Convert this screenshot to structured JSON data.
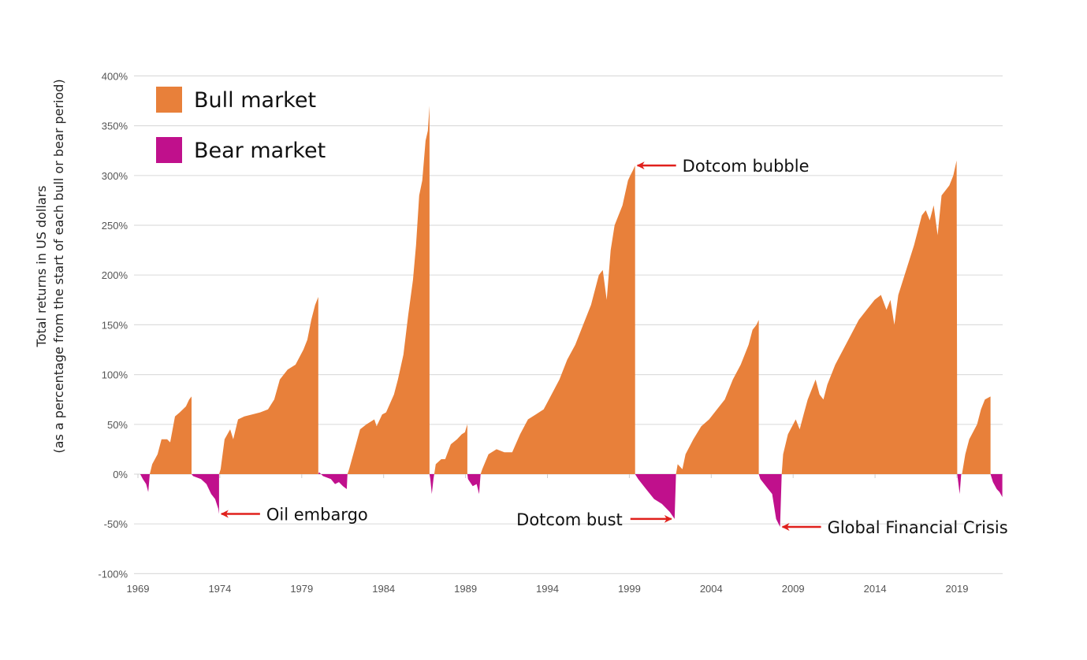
{
  "chart_data": {
    "type": "area",
    "title": "",
    "ylabel_line1": "Total returns in US dollars",
    "ylabel_line2": "(as a percentage from the start of each bull or bear period)",
    "xlabel": "",
    "ylim": [
      -100,
      400
    ],
    "xlim": [
      1969,
      2022.8
    ],
    "yticks": [
      -100,
      -50,
      0,
      50,
      100,
      150,
      200,
      250,
      300,
      350,
      400
    ],
    "ytick_labels": [
      "-100%",
      "-50%",
      "0%",
      "50%",
      "100%",
      "150%",
      "200%",
      "250%",
      "300%",
      "350%",
      "400%"
    ],
    "xticks": [
      1969,
      1974,
      1979,
      1984,
      1989,
      1994,
      1999,
      2004,
      2009,
      2014,
      2019
    ],
    "xtick_labels": [
      "1969",
      "1974",
      "1979",
      "1984",
      "1989",
      "1994",
      "1999",
      "2004",
      "2009",
      "2014",
      "2019"
    ],
    "grid": true,
    "legend_position": "top-left",
    "colors": {
      "bull": "#E8803A",
      "bear": "#C0108C",
      "grid": "#dddddd",
      "annotation_arrow": "#E0201C"
    },
    "legend": [
      {
        "key": "bull",
        "label": "Bull market"
      },
      {
        "key": "bear",
        "label": "Bear market"
      }
    ],
    "segments": [
      {
        "kind": "bear",
        "points": [
          [
            1969.14,
            0
          ],
          [
            1969.3,
            -5
          ],
          [
            1969.5,
            -10
          ],
          [
            1969.63,
            -18
          ],
          [
            1969.72,
            0
          ]
        ]
      },
      {
        "kind": "bull",
        "points": [
          [
            1969.72,
            0
          ],
          [
            1969.87,
            10
          ],
          [
            1970.2,
            20
          ],
          [
            1970.44,
            35
          ],
          [
            1970.78,
            35
          ],
          [
            1970.97,
            32
          ],
          [
            1971.26,
            58
          ],
          [
            1971.55,
            62
          ],
          [
            1971.93,
            68
          ],
          [
            1972.13,
            75
          ],
          [
            1972.27,
            78
          ]
        ]
      },
      {
        "kind": "bear",
        "points": [
          [
            1972.27,
            0
          ],
          [
            1972.37,
            -2
          ],
          [
            1972.85,
            -5
          ],
          [
            1973.18,
            -10
          ],
          [
            1973.47,
            -20
          ],
          [
            1973.71,
            -25
          ],
          [
            1973.91,
            -35
          ],
          [
            1973.95,
            -40
          ]
        ]
      },
      {
        "kind": "bull",
        "points": [
          [
            1973.95,
            0
          ],
          [
            1974.05,
            5
          ],
          [
            1974.29,
            35
          ],
          [
            1974.63,
            45
          ],
          [
            1974.82,
            35
          ],
          [
            1975.11,
            55
          ],
          [
            1975.49,
            58
          ],
          [
            1975.97,
            60
          ],
          [
            1976.46,
            62
          ],
          [
            1976.94,
            65
          ],
          [
            1977.32,
            75
          ],
          [
            1977.66,
            95
          ],
          [
            1977.9,
            100
          ],
          [
            1978.14,
            105
          ],
          [
            1978.62,
            110
          ],
          [
            1979.1,
            125
          ],
          [
            1979.34,
            135
          ],
          [
            1979.58,
            155
          ],
          [
            1979.82,
            170
          ],
          [
            1980.01,
            178
          ]
        ]
      },
      {
        "kind": "bear",
        "points": [
          [
            1980.01,
            0
          ],
          [
            1980.06,
            2
          ],
          [
            1980.3,
            -2
          ],
          [
            1980.78,
            -5
          ],
          [
            1981.03,
            -10
          ],
          [
            1981.27,
            -8
          ],
          [
            1981.51,
            -12
          ],
          [
            1981.75,
            -15
          ],
          [
            1981.79,
            0
          ]
        ]
      },
      {
        "kind": "bull",
        "points": [
          [
            1981.79,
            0
          ],
          [
            1981.89,
            5
          ],
          [
            1982.23,
            25
          ],
          [
            1982.56,
            45
          ],
          [
            1982.95,
            50
          ],
          [
            1983.43,
            55
          ],
          [
            1983.57,
            48
          ],
          [
            1983.91,
            60
          ],
          [
            1984.15,
            62
          ],
          [
            1984.63,
            80
          ],
          [
            1984.87,
            95
          ],
          [
            1985.21,
            120
          ],
          [
            1985.5,
            160
          ],
          [
            1985.79,
            195
          ],
          [
            1985.98,
            230
          ],
          [
            1986.17,
            280
          ],
          [
            1986.36,
            295
          ],
          [
            1986.56,
            335
          ],
          [
            1986.7,
            345
          ],
          [
            1986.8,
            370
          ]
        ]
      },
      {
        "kind": "bear",
        "points": [
          [
            1986.8,
            0
          ],
          [
            1986.85,
            -5
          ],
          [
            1986.94,
            -20
          ],
          [
            1987.04,
            -5
          ],
          [
            1987.09,
            0
          ]
        ]
      },
      {
        "kind": "bull",
        "points": [
          [
            1987.09,
            0
          ],
          [
            1987.18,
            10
          ],
          [
            1987.52,
            15
          ],
          [
            1987.76,
            15
          ],
          [
            1988.1,
            30
          ],
          [
            1988.48,
            35
          ],
          [
            1988.77,
            40
          ],
          [
            1988.96,
            42
          ],
          [
            1989.11,
            50
          ]
        ]
      },
      {
        "kind": "bear",
        "points": [
          [
            1989.11,
            0
          ],
          [
            1989.15,
            -5
          ],
          [
            1989.44,
            -12
          ],
          [
            1989.68,
            -10
          ],
          [
            1989.83,
            -20
          ],
          [
            1989.92,
            0
          ]
        ]
      },
      {
        "kind": "bull",
        "points": [
          [
            1989.92,
            0
          ],
          [
            1990.02,
            5
          ],
          [
            1990.4,
            20
          ],
          [
            1990.89,
            25
          ],
          [
            1991.37,
            22
          ],
          [
            1991.85,
            22
          ],
          [
            1992.33,
            40
          ],
          [
            1992.81,
            55
          ],
          [
            1993.29,
            60
          ],
          [
            1993.77,
            65
          ],
          [
            1994.25,
            80
          ],
          [
            1994.73,
            95
          ],
          [
            1995.21,
            115
          ],
          [
            1995.7,
            130
          ],
          [
            1996.18,
            150
          ],
          [
            1996.66,
            170
          ],
          [
            1997.14,
            200
          ],
          [
            1997.38,
            205
          ],
          [
            1997.62,
            175
          ],
          [
            1997.86,
            225
          ],
          [
            1998.1,
            250
          ],
          [
            1998.58,
            270
          ],
          [
            1998.92,
            295
          ],
          [
            1999.06,
            300
          ],
          [
            1999.21,
            305
          ],
          [
            1999.35,
            310
          ]
        ]
      },
      {
        "kind": "bear",
        "points": [
          [
            1999.35,
            0
          ],
          [
            1999.54,
            -5
          ],
          [
            2000.02,
            -15
          ],
          [
            2000.51,
            -25
          ],
          [
            2000.99,
            -30
          ],
          [
            2001.47,
            -38
          ],
          [
            2001.76,
            -45
          ],
          [
            2001.85,
            0
          ]
        ]
      },
      {
        "kind": "bull",
        "points": [
          [
            2001.85,
            0
          ],
          [
            2001.95,
            10
          ],
          [
            2002.24,
            5
          ],
          [
            2002.43,
            20
          ],
          [
            2002.91,
            35
          ],
          [
            2003.39,
            48
          ],
          [
            2003.87,
            55
          ],
          [
            2004.35,
            65
          ],
          [
            2004.83,
            75
          ],
          [
            2005.32,
            95
          ],
          [
            2005.8,
            110
          ],
          [
            2006.28,
            130
          ],
          [
            2006.52,
            145
          ],
          [
            2006.76,
            150
          ],
          [
            2006.9,
            155
          ]
        ]
      },
      {
        "kind": "bear",
        "points": [
          [
            2006.9,
            0
          ],
          [
            2007.0,
            -5
          ],
          [
            2007.24,
            -10
          ],
          [
            2007.48,
            -15
          ],
          [
            2007.72,
            -20
          ],
          [
            2007.96,
            -45
          ],
          [
            2008.2,
            -53
          ],
          [
            2008.3,
            0
          ]
        ]
      },
      {
        "kind": "bull",
        "points": [
          [
            2008.3,
            0
          ],
          [
            2008.39,
            20
          ],
          [
            2008.68,
            40
          ],
          [
            2009.16,
            55
          ],
          [
            2009.4,
            45
          ],
          [
            2009.64,
            60
          ],
          [
            2009.89,
            75
          ],
          [
            2010.37,
            95
          ],
          [
            2010.61,
            80
          ],
          [
            2010.85,
            75
          ],
          [
            2011.09,
            90
          ],
          [
            2011.57,
            110
          ],
          [
            2012.05,
            125
          ],
          [
            2012.53,
            140
          ],
          [
            2013.01,
            155
          ],
          [
            2013.49,
            165
          ],
          [
            2013.97,
            175
          ],
          [
            2014.36,
            180
          ],
          [
            2014.7,
            165
          ],
          [
            2014.94,
            175
          ],
          [
            2015.18,
            150
          ],
          [
            2015.42,
            180
          ],
          [
            2015.9,
            205
          ],
          [
            2016.38,
            230
          ],
          [
            2016.86,
            260
          ],
          [
            2017.1,
            265
          ],
          [
            2017.34,
            255
          ],
          [
            2017.58,
            270
          ],
          [
            2017.82,
            240
          ],
          [
            2018.06,
            280
          ],
          [
            2018.3,
            285
          ],
          [
            2018.54,
            290
          ],
          [
            2018.78,
            300
          ],
          [
            2018.98,
            315
          ],
          [
            2019.02,
            0
          ]
        ]
      },
      {
        "kind": "bear",
        "points": [
          [
            2019.02,
            0
          ],
          [
            2019.17,
            -20
          ],
          [
            2019.26,
            0
          ]
        ]
      },
      {
        "kind": "bull",
        "points": [
          [
            2019.31,
            0
          ],
          [
            2019.51,
            20
          ],
          [
            2019.75,
            35
          ],
          [
            2020.23,
            50
          ],
          [
            2020.47,
            65
          ],
          [
            2020.71,
            75
          ],
          [
            2021.05,
            78
          ]
        ]
      },
      {
        "kind": "bear",
        "points": [
          [
            2021.05,
            0
          ],
          [
            2021.2,
            -8
          ],
          [
            2021.43,
            -15
          ],
          [
            2021.6,
            -18
          ],
          [
            2021.77,
            -23
          ]
        ]
      }
    ],
    "annotations": [
      {
        "label": "Oil embargo",
        "x": 1973.95,
        "y": -40,
        "side": "right"
      },
      {
        "label": "Dotcom bubble",
        "x": 1999.35,
        "y": 310,
        "side": "right"
      },
      {
        "label": "Dotcom bust",
        "x": 2001.76,
        "y": -45,
        "side": "left"
      },
      {
        "label": "Global Financial Crisis",
        "x": 2008.2,
        "y": -53,
        "side": "right"
      }
    ]
  }
}
